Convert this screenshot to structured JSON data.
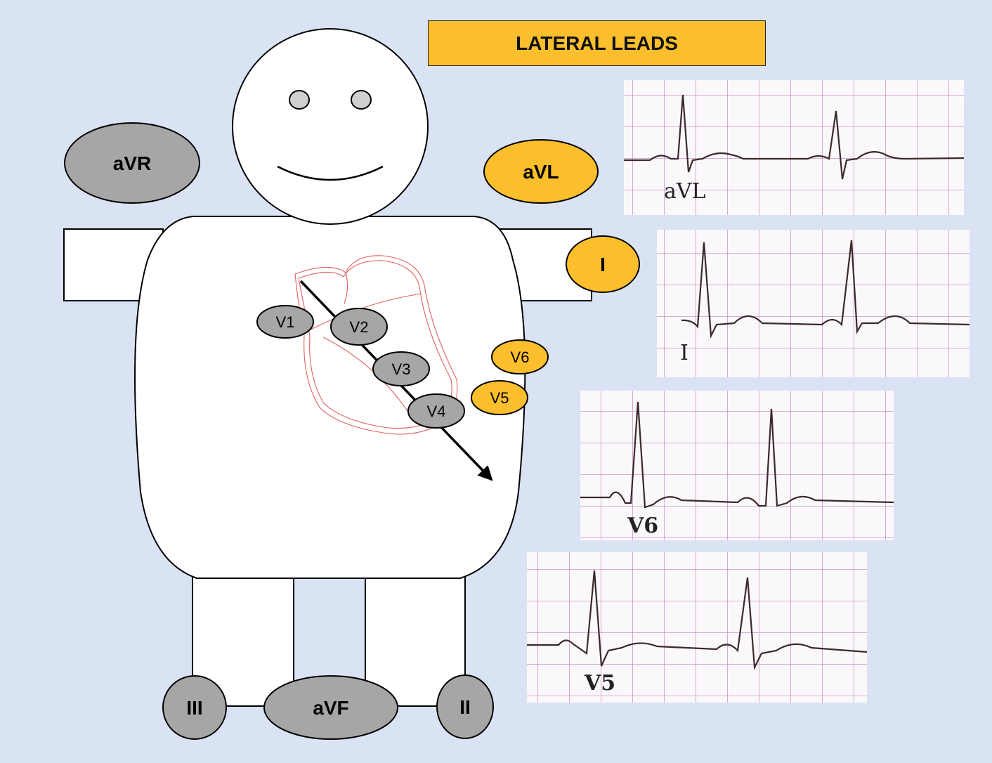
{
  "title": "LATERAL LEADS",
  "colors": {
    "background": "#dae3f3",
    "highlight_lead": "#fbbf2d",
    "other_lead": "#a6a6a6",
    "heart_outline": "#e06060",
    "ecg_grid": "#cc99cc",
    "ecg_trace": "#3a2a2a"
  },
  "limb_leads": {
    "avr": "aVR",
    "avl": "aVL",
    "i": "I",
    "iii": "III",
    "avf": "aVF",
    "ii": "II"
  },
  "chest_leads": {
    "v1": "V1",
    "v2": "V2",
    "v3": "V3",
    "v4": "V4",
    "v5": "V5",
    "v6": "V6"
  },
  "highlighted_leads": [
    "aVL",
    "I",
    "V5",
    "V6"
  ],
  "ecg_strips": [
    {
      "lead": "aVL"
    },
    {
      "lead": "I"
    },
    {
      "lead": "V6"
    },
    {
      "lead": "V5"
    }
  ]
}
